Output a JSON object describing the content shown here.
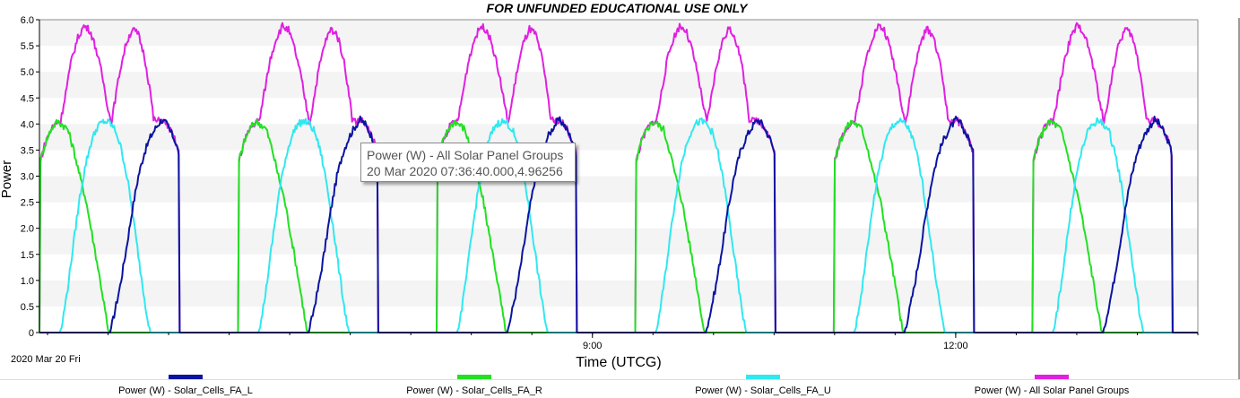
{
  "chart_data": {
    "type": "line",
    "title": "FOR UNFUNDED EDUCATIONAL USE ONLY",
    "xlabel": "Time (UTCG)",
    "ylabel": "Power",
    "date_label": "2020 Mar 20 Fri",
    "ylim": [
      0,
      6.0
    ],
    "xlim": [
      "2020-03-20 04:26",
      "2020-03-20 14:00"
    ],
    "yticks": [
      "0",
      "0.5",
      "1.0",
      "1.5",
      "2.0",
      "2.5",
      "3.0",
      "3.5",
      "4.0",
      "4.5",
      "5.0",
      "5.5",
      "6.0"
    ],
    "xticks": [
      {
        "time": "2020-03-20 09:00",
        "label": "9:00"
      },
      {
        "time": "2020-03-20 12:00",
        "label": "12:00"
      }
    ],
    "grid": "horizontal-bands",
    "legend_position": "bottom",
    "orbit_period_min": 98.4,
    "series": [
      {
        "name": "Power (W) - Solar_Cells_FA_L",
        "color": "#0a14a0",
        "points": [
          {
            "t_min": 0.0,
            "y": 0.0
          },
          {
            "t_min": 35.0,
            "y": 0.0
          },
          {
            "t_min": 36.5,
            "y": 0.25
          },
          {
            "t_min": 40.0,
            "y": 0.9
          },
          {
            "t_min": 43.0,
            "y": 1.6
          },
          {
            "t_min": 46.0,
            "y": 2.35
          },
          {
            "t_min": 49.0,
            "y": 3.0
          },
          {
            "t_min": 52.0,
            "y": 3.45
          },
          {
            "t_min": 55.0,
            "y": 3.75
          },
          {
            "t_min": 58.0,
            "y": 3.95
          },
          {
            "t_min": 60.5,
            "y": 4.08
          },
          {
            "t_min": 63.0,
            "y": 4.0
          },
          {
            "t_min": 65.0,
            "y": 3.85
          },
          {
            "t_min": 67.0,
            "y": 3.7
          },
          {
            "t_min": 69.0,
            "y": 3.45
          },
          {
            "t_min": 69.5,
            "y": 0.0
          },
          {
            "t_min": 98.4,
            "y": 0.0
          }
        ]
      },
      {
        "name": "Power (W) - Solar_Cells_FA_R",
        "color": "#22e022",
        "points": [
          {
            "t_min": 0.0,
            "y": 0.0
          },
          {
            "t_min": 0.5,
            "y": 3.3
          },
          {
            "t_min": 3.0,
            "y": 3.65
          },
          {
            "t_min": 6.0,
            "y": 3.92
          },
          {
            "t_min": 9.0,
            "y": 4.05
          },
          {
            "t_min": 11.0,
            "y": 4.0
          },
          {
            "t_min": 14.0,
            "y": 3.9
          },
          {
            "t_min": 17.0,
            "y": 3.5
          },
          {
            "t_min": 20.0,
            "y": 3.0
          },
          {
            "t_min": 23.0,
            "y": 2.55
          },
          {
            "t_min": 26.0,
            "y": 1.9
          },
          {
            "t_min": 29.0,
            "y": 1.25
          },
          {
            "t_min": 32.0,
            "y": 0.55
          },
          {
            "t_min": 34.0,
            "y": 0.05
          },
          {
            "t_min": 35.0,
            "y": 0.0
          },
          {
            "t_min": 98.4,
            "y": 0.0
          }
        ]
      },
      {
        "name": "Power (W) - Solar_Cells_FA_U",
        "color": "#30e8f0",
        "points": [
          {
            "t_min": 0.0,
            "y": 0.0
          },
          {
            "t_min": 10.0,
            "y": 0.0
          },
          {
            "t_min": 11.0,
            "y": 0.1
          },
          {
            "t_min": 14.0,
            "y": 0.85
          },
          {
            "t_min": 17.0,
            "y": 1.75
          },
          {
            "t_min": 20.0,
            "y": 2.6
          },
          {
            "t_min": 23.0,
            "y": 3.25
          },
          {
            "t_min": 26.0,
            "y": 3.7
          },
          {
            "t_min": 29.0,
            "y": 3.97
          },
          {
            "t_min": 32.0,
            "y": 4.05
          },
          {
            "t_min": 35.0,
            "y": 4.02
          },
          {
            "t_min": 38.0,
            "y": 3.85
          },
          {
            "t_min": 41.0,
            "y": 3.45
          },
          {
            "t_min": 44.0,
            "y": 2.85
          },
          {
            "t_min": 47.0,
            "y": 2.05
          },
          {
            "t_min": 50.0,
            "y": 1.2
          },
          {
            "t_min": 53.0,
            "y": 0.4
          },
          {
            "t_min": 55.0,
            "y": 0.0
          },
          {
            "t_min": 98.4,
            "y": 0.0
          }
        ]
      },
      {
        "name": "Power (W) - All Solar Panel Groups",
        "color": "#e020e0",
        "points": [
          {
            "t_min": 0.0,
            "y": 0.0
          },
          {
            "t_min": 0.5,
            "y": 3.3
          },
          {
            "t_min": 3.0,
            "y": 3.65
          },
          {
            "t_min": 6.0,
            "y": 3.92
          },
          {
            "t_min": 9.0,
            "y": 4.05
          },
          {
            "t_min": 10.5,
            "y": 4.05
          },
          {
            "t_min": 13.0,
            "y": 4.6
          },
          {
            "t_min": 16.0,
            "y": 5.25
          },
          {
            "t_min": 19.0,
            "y": 5.65
          },
          {
            "t_min": 22.0,
            "y": 5.88
          },
          {
            "t_min": 25.0,
            "y": 5.8
          },
          {
            "t_min": 28.0,
            "y": 5.45
          },
          {
            "t_min": 31.0,
            "y": 4.95
          },
          {
            "t_min": 34.0,
            "y": 4.3
          },
          {
            "t_min": 35.5,
            "y": 4.02
          },
          {
            "t_min": 37.0,
            "y": 4.35
          },
          {
            "t_min": 40.0,
            "y": 5.05
          },
          {
            "t_min": 43.0,
            "y": 5.55
          },
          {
            "t_min": 46.0,
            "y": 5.82
          },
          {
            "t_min": 49.0,
            "y": 5.72
          },
          {
            "t_min": 52.0,
            "y": 5.3
          },
          {
            "t_min": 55.0,
            "y": 4.6
          },
          {
            "t_min": 56.5,
            "y": 4.1
          },
          {
            "t_min": 58.0,
            "y": 4.05
          },
          {
            "t_min": 61.0,
            "y": 4.08
          },
          {
            "t_min": 64.0,
            "y": 3.95
          },
          {
            "t_min": 67.0,
            "y": 3.7
          },
          {
            "t_min": 69.0,
            "y": 3.45
          },
          {
            "t_min": 69.5,
            "y": 0.0
          },
          {
            "t_min": 98.4,
            "y": 0.0
          }
        ]
      }
    ],
    "tooltip": {
      "line1": "Power (W) - All Solar Panel Groups",
      "line2": "20 Mar 2020 07:36:40.000,4.96256"
    },
    "colors": {
      "band": "#f4f4f4",
      "axis": "#000000",
      "frame": "#8c8c8c"
    }
  }
}
